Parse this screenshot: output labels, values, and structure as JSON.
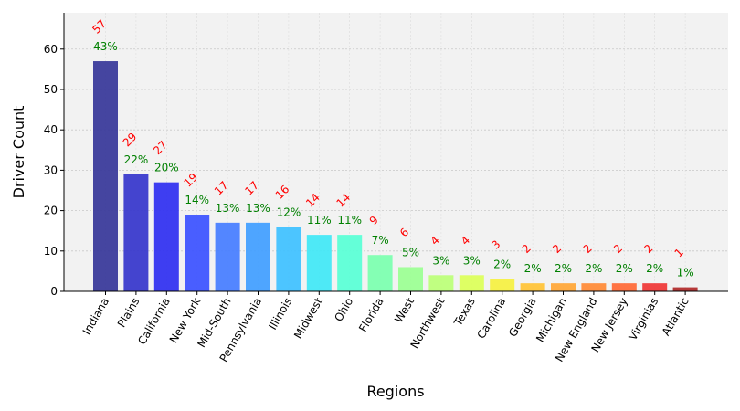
{
  "chart_data": {
    "type": "bar",
    "title": "",
    "xlabel": "Regions",
    "ylabel": "Driver Count",
    "ylim": [
      0,
      69
    ],
    "yticks": [
      0,
      10,
      20,
      30,
      40,
      50,
      60
    ],
    "grid": true,
    "categories": [
      "Indiana",
      "Plains",
      "California",
      "New York",
      "Mid-South",
      "Pennsylvania",
      "Illinois",
      "Midwest",
      "Ohio",
      "Florida",
      "West",
      "Northwest",
      "Texas",
      "Carolina",
      "Georgia",
      "Michigan",
      "New England",
      "New Jersey",
      "Virginias",
      "Atlantic"
    ],
    "values": [
      57,
      29,
      27,
      19,
      17,
      17,
      16,
      14,
      14,
      9,
      6,
      4,
      4,
      3,
      2,
      2,
      2,
      2,
      2,
      1
    ],
    "value_labels": [
      "57",
      "29",
      "27",
      "19",
      "17",
      "17",
      "16",
      "14",
      "14",
      "9",
      "6",
      "4",
      "4",
      "3",
      "2",
      "2",
      "2",
      "2",
      "2",
      "1"
    ],
    "percent_labels": [
      "43%",
      "22%",
      "20%",
      "14%",
      "13%",
      "13%",
      "12%",
      "11%",
      "11%",
      "7%",
      "5%",
      "3%",
      "3%",
      "2%",
      "2%",
      "2%",
      "2%",
      "2%",
      "2%",
      "1%"
    ],
    "colors": [
      "#3b3b9b",
      "#3a3acc",
      "#3434f0",
      "#3f55ff",
      "#4a7fff",
      "#44a0ff",
      "#42c2ff",
      "#45e8f5",
      "#5cffd6",
      "#7dffb0",
      "#9dff95",
      "#bdff7a",
      "#dcff5c",
      "#f5f044",
      "#ffc43a",
      "#ffa83a",
      "#ff8c3a",
      "#ff6b3a",
      "#ef3a3a",
      "#b22e2e"
    ],
    "value_label_color": "#ff0000",
    "percent_label_color": "#008000",
    "plot_background": "#f2f2f2"
  }
}
